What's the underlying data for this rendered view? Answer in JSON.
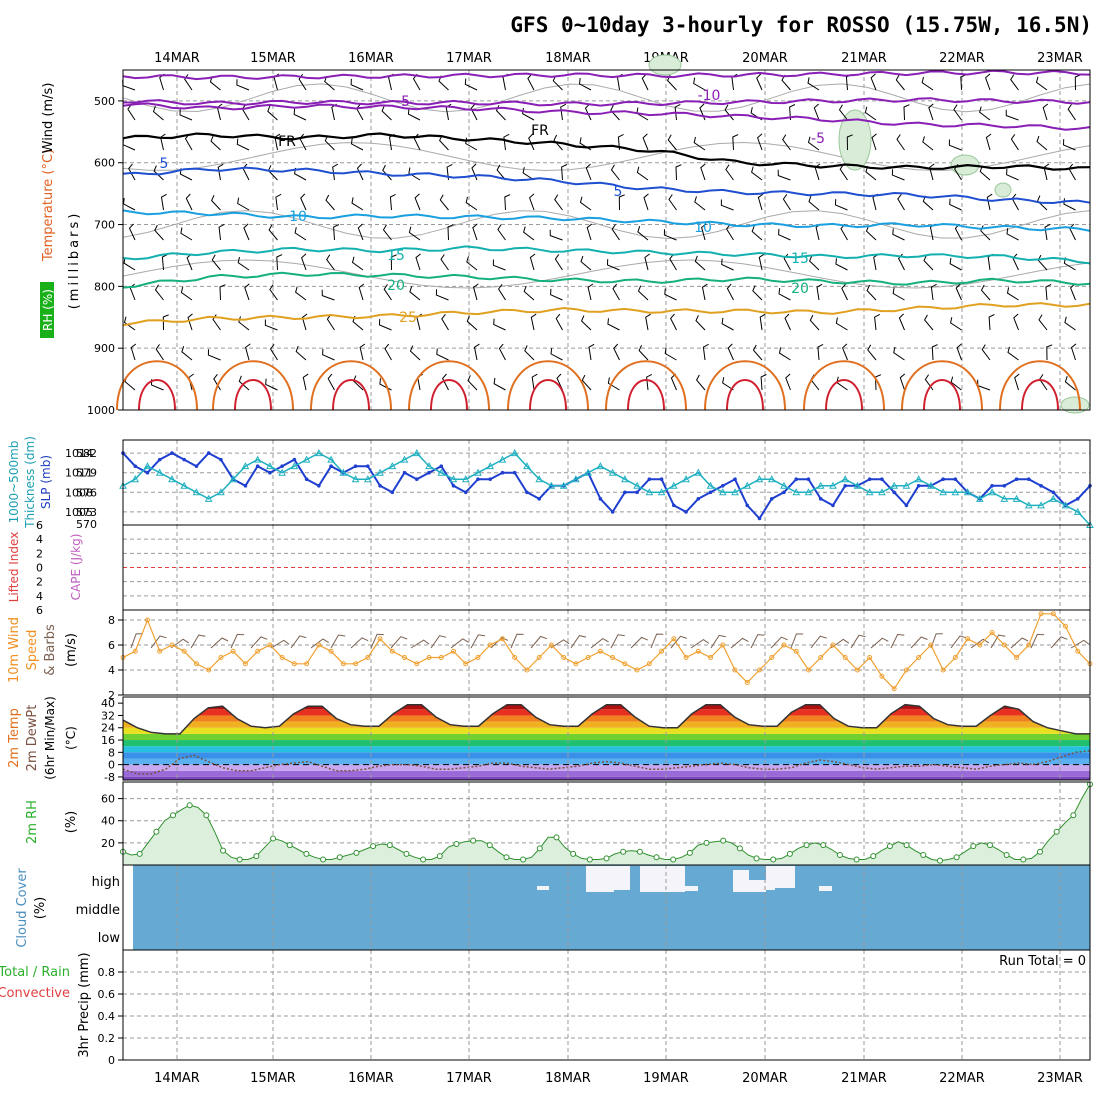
{
  "title": "GFS 0~10day 3-hourly for ROSSO (15.75W, 16.5N)",
  "dates": [
    "14MAR",
    "15MAR",
    "16MAR",
    "17MAR",
    "18MAR",
    "19MAR",
    "20MAR",
    "21MAR",
    "22MAR",
    "23MAR"
  ],
  "colors": {
    "grid": "#9a9a9a",
    "purple": "#8a1fb5",
    "blue": "#1f4fd0",
    "lightblue": "#1aa0e0",
    "teal": "#14b0b0",
    "green": "#16b080",
    "orange": "#e0a020",
    "darkorange": "#e07020",
    "red": "#d02030",
    "slp": "#1f3fd0",
    "thick": "#20b0c0",
    "wind10": "#f0a030",
    "cloud": "#66aad4",
    "rh": "#2ab02a"
  },
  "chart_data": [
    {
      "panel": "upper-air",
      "type": "contour",
      "ylabels": [
        "Temperature (°C)",
        "Wind (m/s)",
        "(millibars)"
      ],
      "rh_label": "RH (%)",
      "yticks": [
        500,
        600,
        700,
        800,
        900,
        1000
      ],
      "ylim": [
        450,
        1000
      ],
      "contours": [
        {
          "label": "-10",
          "color": "purple",
          "values": [
            460,
            462,
            461,
            460,
            459,
            458,
            459,
            458,
            457,
            455,
            454,
            455
          ]
        },
        {
          "label": "-5",
          "color": "purple",
          "values": [
            500,
            504,
            502,
            503,
            503,
            505,
            504,
            502,
            500,
            498,
            500,
            502
          ]
        },
        {
          "label": "-5",
          "color": "purple",
          "values": [
            505,
            512,
            508,
            510,
            512,
            518,
            520,
            525,
            530,
            538,
            540,
            545
          ]
        },
        {
          "label": "FR",
          "color": "black",
          "values": [
            560,
            555,
            560,
            555,
            562,
            570,
            580,
            600,
            605,
            608,
            606,
            610
          ]
        },
        {
          "label": "5",
          "color": "blue",
          "values": [
            620,
            610,
            612,
            618,
            622,
            630,
            642,
            648,
            650,
            652,
            660,
            665
          ]
        },
        {
          "label": "10",
          "color": "lightblue",
          "values": [
            680,
            682,
            688,
            686,
            688,
            690,
            695,
            700,
            702,
            700,
            705,
            708
          ]
        },
        {
          "label": "15",
          "color": "teal",
          "values": [
            755,
            745,
            740,
            742,
            738,
            742,
            745,
            748,
            752,
            750,
            752,
            760
          ]
        },
        {
          "label": "20",
          "color": "green",
          "values": [
            800,
            785,
            780,
            782,
            785,
            790,
            792,
            788,
            792,
            795,
            790,
            795
          ]
        },
        {
          "label": "25",
          "color": "orange",
          "values": [
            860,
            852,
            850,
            848,
            842,
            838,
            840,
            840,
            842,
            836,
            830,
            830
          ]
        }
      ],
      "contour_labels": [
        "-10",
        "-5",
        "-5",
        "FR",
        "5",
        "10",
        "15",
        "20",
        "25",
        "10"
      ]
    },
    {
      "panel": "slp-thickness",
      "type": "line",
      "ylabels_left": [
        "1000~500mb",
        "Thickness (dm)"
      ],
      "ylabel_right": "SLP (mb)",
      "thickness_ticks": [
        573,
        576,
        579,
        582
      ],
      "slp_ticks": [
        1005,
        1008,
        1011,
        1014
      ],
      "ylim_slp": [
        1003,
        1016
      ],
      "series": [
        {
          "name": "SLP",
          "values": [
            1014,
            1012,
            1011,
            1013,
            1014,
            1013,
            1012,
            1014,
            1013,
            1010,
            1009,
            1012,
            1011,
            1012,
            1013,
            1010,
            1009,
            1012,
            1011,
            1012,
            1012,
            1009,
            1008,
            1011,
            1010,
            1011,
            1012,
            1009,
            1008,
            1010,
            1010,
            1011,
            1011,
            1008,
            1007,
            1009,
            1009,
            1010,
            1011,
            1007,
            1005,
            1008,
            1008,
            1010,
            1010,
            1006,
            1005,
            1007,
            1008,
            1009,
            1010,
            1006,
            1004,
            1007,
            1008,
            1010,
            1010,
            1007,
            1006,
            1009,
            1009,
            1010,
            1010,
            1008,
            1006,
            1009,
            1009,
            1010,
            1010,
            1008,
            1007,
            1009,
            1009,
            1010,
            1010,
            1009,
            1008,
            1006,
            1007,
            1009
          ]
        },
        {
          "name": "Thickness",
          "values": [
            1009,
            1010,
            1012,
            1011,
            1010,
            1009,
            1008,
            1007,
            1008,
            1010,
            1012,
            1013,
            1012,
            1011,
            1012,
            1013,
            1014,
            1013,
            1011,
            1010,
            1010,
            1011,
            1012,
            1013,
            1014,
            1012,
            1011,
            1010,
            1010,
            1011,
            1012,
            1013,
            1014,
            1012,
            1010,
            1009,
            1009,
            1010,
            1011,
            1012,
            1011,
            1010,
            1009,
            1008,
            1008,
            1009,
            1010,
            1011,
            1009,
            1008,
            1008,
            1009,
            1010,
            1010,
            1009,
            1008,
            1008,
            1009,
            1009,
            1010,
            1009,
            1008,
            1008,
            1009,
            1009,
            1010,
            1009,
            1008,
            1008,
            1008,
            1007,
            1008,
            1007,
            1007,
            1006,
            1006,
            1007,
            1006,
            1005,
            1003
          ]
        }
      ]
    },
    {
      "panel": "cape-li",
      "type": "line",
      "ylabel_left": "Lifted Index",
      "ylabel_right": "CAPE (J/kg)",
      "yticks": [
        -6,
        -4,
        -2,
        0,
        2,
        4,
        6
      ],
      "ytick_labels": [
        "6",
        "4",
        "2",
        "0",
        "2",
        "4",
        "6"
      ],
      "ylim": [
        -6,
        6
      ],
      "reference_line": 0
    },
    {
      "panel": "wind10m",
      "type": "line",
      "ylabels": [
        "10m Wind",
        "Speed",
        "& Barbs",
        "(m/s)"
      ],
      "yticks": [
        2,
        4,
        6,
        8
      ],
      "ylim": [
        2,
        8.8
      ],
      "series": [
        {
          "name": "10m wind speed",
          "values": [
            5,
            5.5,
            8,
            5.5,
            6,
            5.5,
            4.5,
            4,
            5,
            5.5,
            4.5,
            5.5,
            6,
            5,
            4.5,
            4.5,
            6,
            5.5,
            4.5,
            4.5,
            5,
            6.5,
            5.5,
            5,
            4.5,
            5,
            5,
            5.5,
            4.5,
            5,
            6,
            6.5,
            5,
            4,
            5,
            6,
            5,
            4.5,
            5,
            5.5,
            5,
            4.5,
            4,
            4.5,
            5.5,
            6.5,
            5,
            5.5,
            5,
            6,
            4,
            3,
            4,
            5,
            6,
            5.5,
            4,
            5,
            6,
            5,
            4,
            5,
            3.5,
            2.5,
            4,
            5,
            6,
            4,
            5,
            6.5,
            6,
            7,
            6,
            5,
            6,
            8.5,
            8.5,
            7.5,
            5.5,
            4.5
          ]
        }
      ]
    },
    {
      "panel": "temp-dewpoint",
      "type": "area",
      "ylabels": [
        "2m Temp",
        "2m DewPt",
        "(6hr Min/Max)",
        "(°C)"
      ],
      "yticks": [
        -8,
        0,
        8,
        16,
        24,
        32,
        40
      ],
      "ylim": [
        -10,
        44
      ],
      "series": [
        {
          "name": "2m Temp",
          "values": [
            29,
            24,
            21,
            20,
            20,
            30,
            37,
            38,
            30,
            25,
            24,
            25,
            33,
            38,
            38,
            30,
            26,
            25,
            25,
            33,
            39,
            39,
            31,
            26,
            25,
            25,
            33,
            39,
            39,
            31,
            26,
            25,
            25,
            33,
            39,
            39,
            31,
            25,
            24,
            24,
            33,
            39,
            39,
            31,
            26,
            25,
            25,
            34,
            39,
            39,
            30,
            25,
            24,
            24,
            33,
            39,
            38,
            30,
            26,
            25,
            25,
            32,
            38,
            36,
            28,
            24,
            22,
            20,
            20
          ]
        },
        {
          "name": "2m DewPt",
          "values": [
            -3,
            -6,
            -6,
            -3,
            4,
            6,
            2,
            -2,
            -4,
            -4,
            -2,
            0,
            1,
            2,
            -1,
            -4,
            -4,
            -3,
            -1,
            0,
            0,
            -1,
            -3,
            -3,
            -2,
            -1,
            1,
            1,
            -1,
            -2,
            -3,
            -2,
            -1,
            1,
            2,
            1,
            -1,
            -3,
            -3,
            -2,
            -1,
            0,
            1,
            0,
            -2,
            -3,
            -3,
            -2,
            1,
            3,
            2,
            0,
            -2,
            -3,
            -2,
            -1,
            -1,
            0,
            -1,
            -2,
            -3,
            -1,
            0,
            1,
            0,
            2,
            5,
            8,
            9
          ]
        }
      ]
    },
    {
      "panel": "rh2m",
      "type": "area",
      "ylabels": [
        "2m RH",
        "(%)"
      ],
      "yticks": [
        20,
        40,
        60
      ],
      "ylim": [
        0,
        75
      ],
      "series": [
        {
          "name": "2m RH",
          "values": [
            12,
            9,
            10,
            20,
            30,
            40,
            45,
            50,
            54,
            52,
            45,
            30,
            13,
            7,
            5,
            5,
            8,
            16,
            24,
            22,
            18,
            14,
            10,
            7,
            5,
            5,
            7,
            9,
            11,
            14,
            17,
            19,
            18,
            14,
            10,
            7,
            5,
            5,
            8,
            16,
            19,
            21,
            22,
            22,
            18,
            12,
            7,
            5,
            5,
            7,
            15,
            25,
            25,
            16,
            10,
            6,
            5,
            5,
            6,
            10,
            12,
            13,
            12,
            9,
            7,
            5,
            5,
            7,
            11,
            18,
            20,
            21,
            22,
            20,
            15,
            9,
            6,
            5,
            5,
            6,
            10,
            15,
            18,
            20,
            18,
            14,
            9,
            6,
            5,
            5,
            8,
            13,
            17,
            21,
            18,
            13,
            9,
            5,
            4,
            5,
            7,
            12,
            17,
            20,
            18,
            14,
            9,
            5,
            5,
            6,
            12,
            22,
            30,
            38,
            45,
            60,
            73
          ]
        }
      ]
    },
    {
      "panel": "cloud-cover",
      "type": "heatmap",
      "ylabels": [
        "Cloud Cover",
        "(%)"
      ],
      "levels": [
        "high",
        "middle",
        "low"
      ]
    },
    {
      "panel": "precip",
      "type": "bar",
      "ylabels_left": [
        "Total / Rain",
        "Convective"
      ],
      "ylabel_right": [
        "3hr Precip (mm)"
      ],
      "yticks": [
        0,
        0.2,
        0.4,
        0.6,
        0.8
      ],
      "ylim": [
        0,
        1
      ],
      "run_total": "Run Total = 0"
    }
  ]
}
